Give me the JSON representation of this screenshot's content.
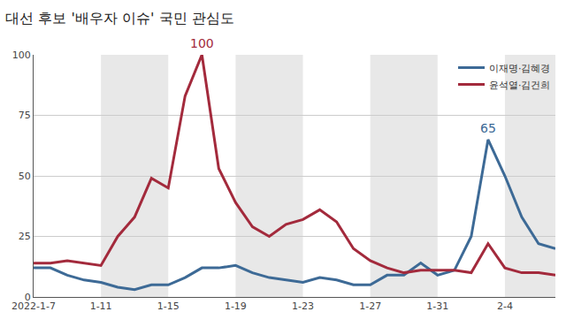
{
  "chart_data": {
    "type": "line",
    "title": "대선 후보 '배우자 이슈' 국민 관심도",
    "categories": [
      "2022-1-7",
      null,
      null,
      null,
      "1-11",
      null,
      null,
      null,
      "1-15",
      null,
      null,
      null,
      "1-19",
      null,
      null,
      null,
      "1-23",
      null,
      null,
      null,
      "1-27",
      null,
      null,
      null,
      "1-31",
      null,
      null,
      null,
      "2-4",
      null,
      null,
      null
    ],
    "series": [
      {
        "name": "이재명·김혜경",
        "color": "#3d6a96",
        "values": [
          12,
          12,
          9,
          7,
          6,
          4,
          3,
          5,
          5,
          8,
          12,
          12,
          13,
          10,
          8,
          7,
          6,
          8,
          7,
          5,
          5,
          9,
          9,
          14,
          9,
          11,
          25,
          65,
          50,
          33,
          22,
          20
        ]
      },
      {
        "name": "윤석열·김건희",
        "color": "#a32a3c",
        "values": [
          14,
          14,
          15,
          14,
          13,
          25,
          33,
          49,
          45,
          83,
          100,
          53,
          39,
          29,
          25,
          30,
          32,
          36,
          31,
          20,
          15,
          12,
          10,
          11,
          11,
          11,
          10,
          22,
          12,
          10,
          10,
          9
        ]
      }
    ],
    "ylim": [
      0,
      100
    ],
    "yticks": [
      0,
      25,
      50,
      75,
      100
    ],
    "grid": true,
    "legend": "top right",
    "annotations": [
      {
        "text": "100",
        "series": "윤석열·김건희",
        "index": 10
      },
      {
        "text": "65",
        "series": "이재명·김혜경",
        "index": 27
      }
    ]
  }
}
